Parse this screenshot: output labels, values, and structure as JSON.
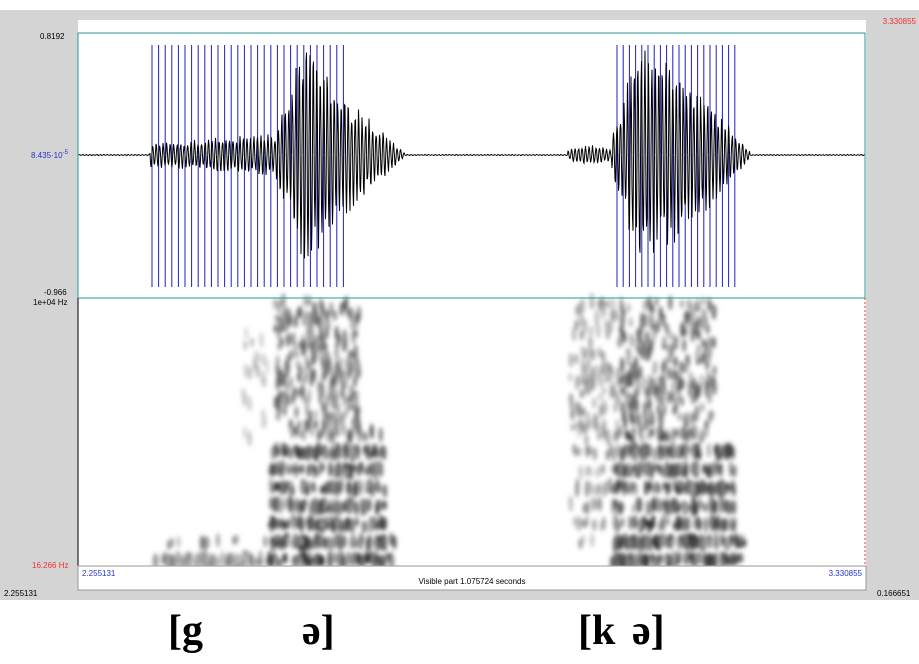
{
  "axis_labels": {
    "wave_top": "0.8192",
    "wave_mid_base": "8.435·10",
    "wave_mid_exp": "-5",
    "wave_bottom": "-0.966",
    "spec_top": "1e+04 Hz",
    "spec_bottom": "16.266 Hz"
  },
  "time_bar": {
    "start": "2.255131",
    "visible": "Visible part 1.075724 seconds",
    "end": "3.330855",
    "cursor": "3.330855"
  },
  "footer": {
    "left": "2.255131",
    "right": "0.166651"
  },
  "transcription": [
    "[g",
    "ə]",
    "[k",
    "ə]"
  ]
}
